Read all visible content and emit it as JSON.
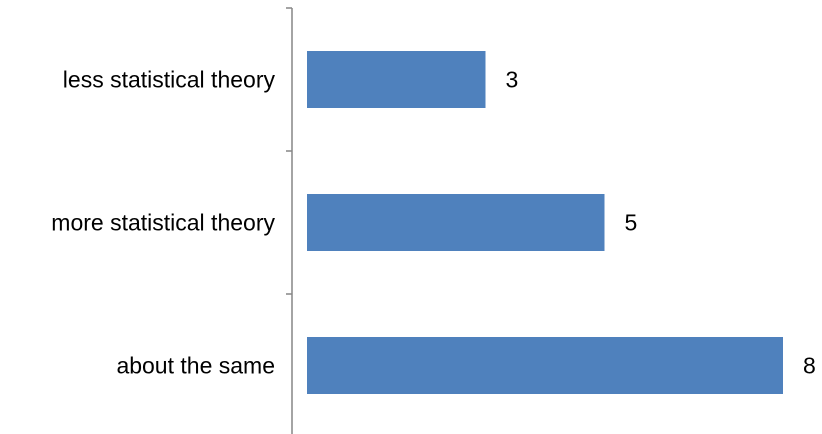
{
  "chart_data": {
    "type": "bar",
    "orientation": "horizontal",
    "categories": [
      "less statistical theory",
      "more statistical theory",
      "about the same"
    ],
    "values": [
      3,
      5,
      8
    ],
    "title": "",
    "xlabel": "",
    "ylabel": "",
    "xlim": [
      0,
      8
    ],
    "grid": false,
    "legend": "none",
    "data_labels": true,
    "bar_color": "#4F81BD",
    "axis_color": "#868686"
  }
}
